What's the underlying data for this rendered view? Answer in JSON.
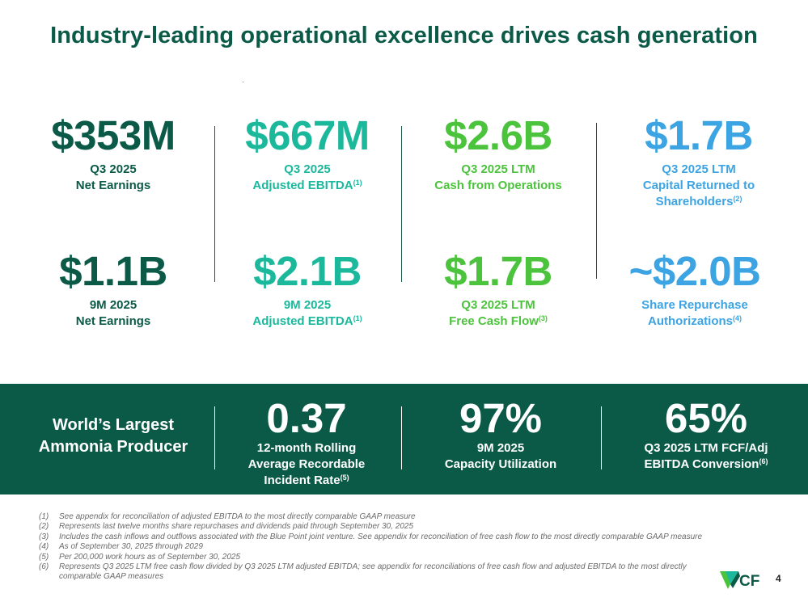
{
  "title": "Industry-leading operational excellence drives cash generation",
  "metrics_top": [
    {
      "value": "$353M",
      "line1": "Q3 2025",
      "line2": "Net Earnings",
      "sup": "",
      "color": "#0b5a47"
    },
    {
      "value": "$667M",
      "line1": "Q3 2025",
      "line2": "Adjusted EBITDA",
      "sup": "(1)",
      "color": "#1cb89c"
    },
    {
      "value": "$2.6B",
      "line1": "Q3 2025 LTM",
      "line2": "Cash from Operations",
      "sup": "",
      "color": "#4cc33c"
    },
    {
      "value": "$1.7B",
      "line1": "Q3 2025 LTM",
      "line2": "Capital Returned to",
      "line3": "Shareholders",
      "sup": "(2)",
      "color": "#3ca4e3"
    }
  ],
  "metrics_bottom": [
    {
      "value": "$1.1B",
      "line1": "9M 2025",
      "line2": "Net Earnings",
      "sup": ""
    },
    {
      "value": "$2.1B",
      "line1": "9M 2025",
      "line2": "Adjusted EBITDA",
      "sup": "(1)"
    },
    {
      "value": "$1.7B",
      "line1": "Q3 2025 LTM",
      "line2": "Free Cash Flow",
      "sup": "(3)"
    },
    {
      "value": "~$2.0B",
      "line1": "Share Repurchase",
      "line2": "Authorizations",
      "sup": "(4)"
    }
  ],
  "band": {
    "header_line1": "World’s Largest",
    "header_line2": "Ammonia Producer",
    "items": [
      {
        "value": "0.37",
        "line1": "12-month Rolling",
        "line2": "Average Recordable",
        "line3": "Incident Rate",
        "sup": "(5)"
      },
      {
        "value": "97%",
        "line1": "9M 2025",
        "line2": "Capacity Utilization",
        "sup": ""
      },
      {
        "value": "65%",
        "line1": "Q3 2025 LTM FCF/Adj",
        "line2": "EBITDA Conversion",
        "sup": "(6)"
      }
    ]
  },
  "footnotes": [
    {
      "num": "(1)",
      "text": "See appendix for reconciliation of adjusted EBITDA to the most directly comparable GAAP measure"
    },
    {
      "num": "(2)",
      "text": "Represents last twelve months share repurchases and dividends paid through September 30, 2025"
    },
    {
      "num": "(3)",
      "text": "Includes the cash inflows and outflows associated with the Blue Point joint venture. See appendix for reconciliation of free cash flow to the most directly comparable GAAP measure"
    },
    {
      "num": "(4)",
      "text": "As of September 30, 2025 through 2029"
    },
    {
      "num": "(5)",
      "text": "Per 200,000 work hours as of  September 30, 2025"
    },
    {
      "num": "(6)",
      "text": "Represents Q3 2025 LTM free cash flow divided by Q3 2025 LTM adjusted EBITDA; see appendix for reconciliations of free cash flow and adjusted EBITDA to the most directly comparable GAAP measures"
    }
  ],
  "logo_text": "CF",
  "page_number": "4"
}
